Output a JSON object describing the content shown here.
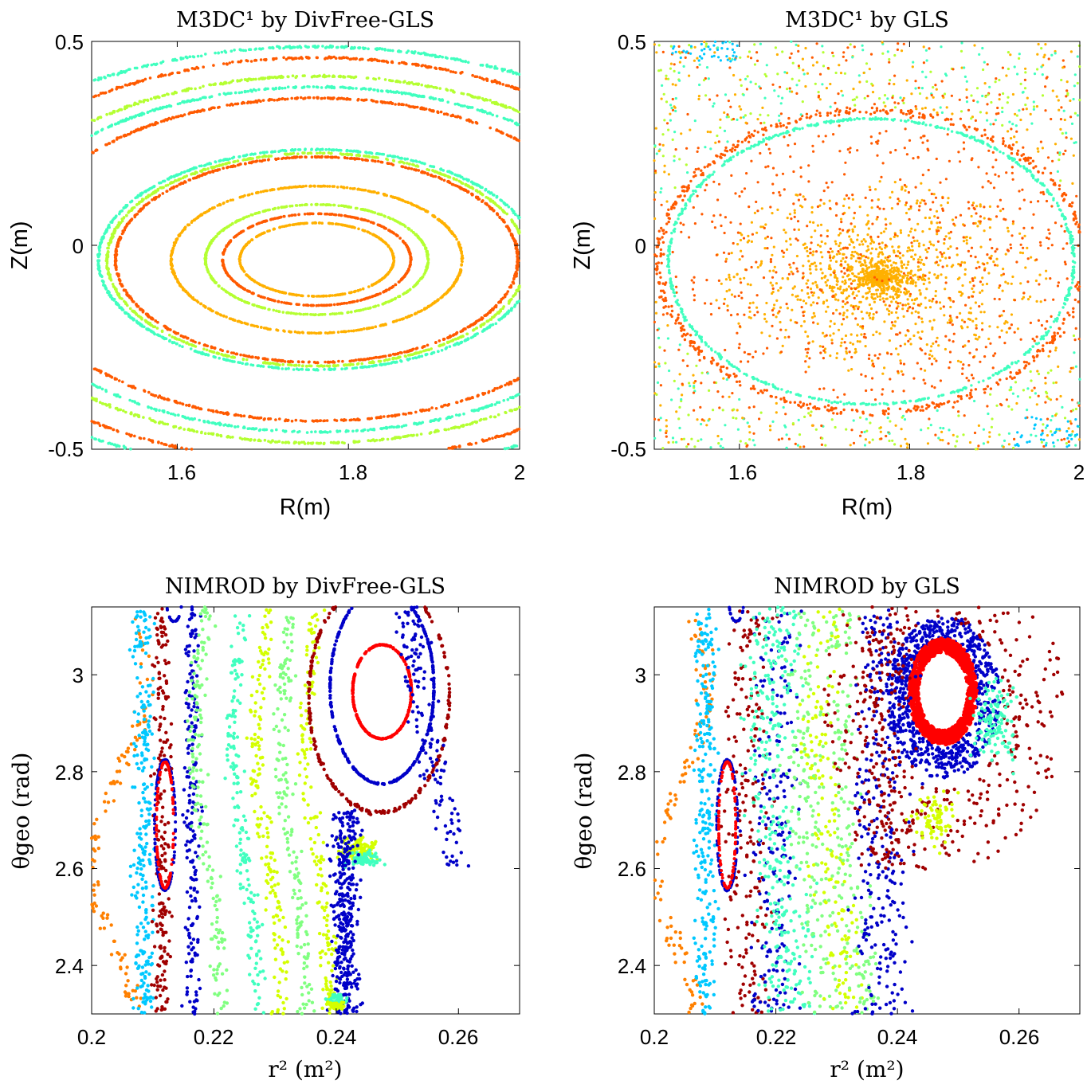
{
  "chart_data": [
    {
      "type": "scatter",
      "title": "M3DC¹ by DivFree-GLS",
      "xlabel": "R(m)",
      "ylabel": "Z(m)",
      "xlim": [
        1.5,
        2.0
      ],
      "ylim": [
        -0.5,
        0.5
      ],
      "xticks": [
        "1.6",
        "1.8",
        "2"
      ],
      "yticks": [
        "-0.5",
        "0",
        "0.5"
      ],
      "pattern": "nested closed flux surfaces (Poincaré plot) centered near R=1.76, Z=-0.03",
      "series": [
        {
          "color": "#ffb000",
          "surfaces": [
            [
              0.09,
              0.1
            ],
            [
              0.17,
              0.2
            ]
          ]
        },
        {
          "color": "#ff5a00",
          "surfaces": [
            [
              0.11,
              0.125
            ],
            [
              0.235,
              0.28
            ],
            [
              0.35,
              0.44
            ],
            [
              0.44,
              0.55
            ]
          ]
        },
        {
          "color": "#b4ff32",
          "surfaces": [
            [
              0.13,
              0.15
            ],
            [
              0.245,
              0.29
            ],
            [
              0.4,
              0.5
            ]
          ]
        },
        {
          "color": "#40ffbf",
          "surfaces": [
            [
              0.255,
              0.3
            ],
            [
              0.38,
              0.47
            ],
            [
              0.48,
              0.58
            ]
          ]
        }
      ]
    },
    {
      "type": "scatter",
      "title": "M3DC¹ by GLS",
      "xlabel": "R(m)",
      "ylabel": "Z(m)",
      "xlim": [
        1.5,
        2.0
      ],
      "ylim": [
        -0.5,
        0.5
      ],
      "xticks": [
        "1.6",
        "1.8",
        "2"
      ],
      "yticks": [
        "-0.5",
        "0",
        "0.5"
      ],
      "pattern": "chaotic stochastic scatter inside an elliptical boundary (R≈1.52–1.99, Z≈-0.39–0.31) with dense core near R=1.77, Z=-0.08",
      "series": [
        {
          "color": "#ffb000",
          "role": "dense core"
        },
        {
          "color": "#ff5a00",
          "role": "inner scatter and boundary ring"
        },
        {
          "color": "#40ffbf",
          "role": "boundary edge"
        },
        {
          "color": "#b4ff32",
          "role": "outer scatter"
        },
        {
          "color": "#00c8ff",
          "role": "corners"
        }
      ]
    },
    {
      "type": "scatter",
      "title": "NIMROD by DivFree-GLS",
      "xlabel": "r² (m²)",
      "ylabel": "θgeo (rad)",
      "xlim": [
        0.2,
        0.27
      ],
      "ylim": [
        2.3,
        3.14
      ],
      "xticks": [
        "0.2",
        "0.22",
        "0.24",
        "0.26"
      ],
      "yticks": [
        "2.4",
        "2.6",
        "2.8",
        "3"
      ],
      "pattern": "magnetic islands: large island O-point near r²=0.247, θ=2.96; small island near r²=0.212, θ=2.69",
      "series": [
        {
          "color": "#ff0000",
          "role": "inner island contours"
        },
        {
          "color": "#0000c8",
          "role": "island separatrix / outer contour"
        },
        {
          "color": "#a00000",
          "role": "surrounding chain"
        },
        {
          "color": "#00c8ff",
          "role": "left band"
        },
        {
          "color": "#80ff80",
          "role": "middle bands"
        },
        {
          "color": "#d4ff00",
          "role": "middle bands"
        },
        {
          "color": "#40ffbf",
          "role": "middle bands"
        },
        {
          "color": "#ff8000",
          "role": "far-left band"
        }
      ]
    },
    {
      "type": "scatter",
      "title": "NIMROD by GLS",
      "xlabel": "r² (m²)",
      "ylabel": "θgeo (rad)",
      "xlim": [
        0.2,
        0.27
      ],
      "ylim": [
        2.3,
        3.14
      ],
      "xticks": [
        "0.2",
        "0.22",
        "0.24",
        "0.26"
      ],
      "yticks": [
        "2.4",
        "2.6",
        "2.8",
        "3"
      ],
      "pattern": "island near r²=0.247, θ=2.97 thickened and surrounded by scattered points; small island near r²=0.212, θ=2.69",
      "series": [
        {
          "color": "#ff0000",
          "role": "inner island (thick)"
        },
        {
          "color": "#0000c8",
          "role": "scattered ring / bands"
        },
        {
          "color": "#a00000",
          "role": "surrounding scatter"
        },
        {
          "color": "#00c8ff",
          "role": "left band"
        },
        {
          "color": "#80ff80",
          "role": "middle bands"
        },
        {
          "color": "#d4ff00",
          "role": "middle bands"
        },
        {
          "color": "#40ffbf",
          "role": "middle bands"
        },
        {
          "color": "#ff8000",
          "role": "far-left band"
        }
      ]
    }
  ]
}
